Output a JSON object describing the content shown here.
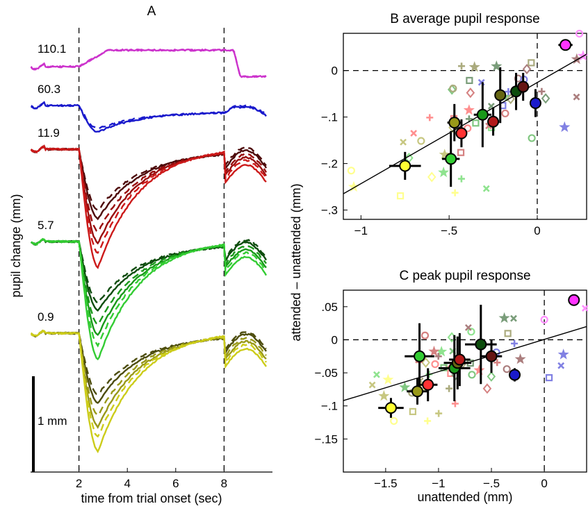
{
  "chart_data": [
    {
      "panel": "A",
      "type": "line",
      "title": "A",
      "xlabel": "time from trial onset (sec)",
      "ylabel": "pupil change (mm)",
      "xlim": [
        0,
        10
      ],
      "xticks": [
        "2",
        "4",
        "6",
        "8"
      ],
      "scale_bar_label": "1 mm",
      "vlines": [
        2,
        8
      ],
      "groups": [
        {
          "label": "110.1",
          "colors": [
            "#cc33cc"
          ],
          "dip": 0.0,
          "late_rise": 0.02,
          "end_drop": 0.45
        },
        {
          "label": "60.3",
          "colors": [
            "#1a1acc"
          ],
          "dip": 0.4,
          "late_rise": 0.15,
          "end_drop": 0.05
        },
        {
          "label": "11.9",
          "colors": [
            "#4d0a0a",
            "#990d0d",
            "#cc1a1a"
          ],
          "dip": 1.05,
          "late_rise": 0.3,
          "end_drop": 0.0
        },
        {
          "label": "5.7",
          "colors": [
            "#0d4d0d",
            "#1a991a",
            "#33cc33"
          ],
          "dip": 1.05,
          "late_rise": 0.3,
          "end_drop": 0.0
        },
        {
          "label": "0.9",
          "colors": [
            "#4d4d0d",
            "#999919",
            "#cccc1a"
          ],
          "dip": 1.05,
          "late_rise": 0.3,
          "end_drop": 0.0
        }
      ]
    },
    {
      "panel": "B",
      "type": "scatter",
      "title": "B average pupil response",
      "xlabel": "",
      "ylabel": "attended – unattended (mm)",
      "xlim": [
        -1.1,
        0.28
      ],
      "ylim": [
        -0.32,
        0.08
      ],
      "xticks": [
        -1,
        -0.5,
        0
      ],
      "yticks": [
        -0.3,
        -0.2,
        -0.1,
        0
      ],
      "fit_line": {
        "x": [
          -1.1,
          0.28
        ],
        "y": [
          -0.265,
          0.035
        ]
      },
      "points": [
        {
          "x": -0.75,
          "y": -0.205,
          "xerr": 0.09,
          "yerr": 0.03,
          "color": "#ffff33"
        },
        {
          "x": -0.49,
          "y": -0.19,
          "xerr": 0.05,
          "yerr": 0.06,
          "color": "#33cc33"
        },
        {
          "x": -0.47,
          "y": -0.112,
          "xerr": 0.04,
          "yerr": 0.04,
          "color": "#999919"
        },
        {
          "x": -0.43,
          "y": -0.135,
          "xerr": 0.03,
          "yerr": 0.03,
          "color": "#ff3333"
        },
        {
          "x": -0.31,
          "y": -0.095,
          "xerr": 0.05,
          "yerr": 0.07,
          "color": "#1a991a"
        },
        {
          "x": -0.25,
          "y": -0.11,
          "xerr": 0.03,
          "yerr": 0.03,
          "color": "#b31a1a"
        },
        {
          "x": -0.21,
          "y": -0.053,
          "xerr": 0.03,
          "yerr": 0.06,
          "color": "#666614"
        },
        {
          "x": -0.12,
          "y": -0.045,
          "xerr": 0.03,
          "yerr": 0.04,
          "color": "#0d4d0d"
        },
        {
          "x": -0.08,
          "y": -0.035,
          "xerr": 0.03,
          "yerr": 0.03,
          "color": "#661414"
        },
        {
          "x": -0.01,
          "y": -0.07,
          "xerr": 0.02,
          "yerr": 0.03,
          "color": "#1a1acc"
        },
        {
          "x": 0.16,
          "y": 0.055,
          "xerr": 0.04,
          "yerr": 0.01,
          "color": "#ff33ff"
        }
      ]
    },
    {
      "panel": "C",
      "type": "scatter",
      "title": "C peak pupil response",
      "xlabel": "unattended (mm)",
      "ylabel": "attended – unattended (mm)",
      "xlim": [
        -1.9,
        0.4
      ],
      "ylim": [
        -0.2,
        0.075
      ],
      "xticks": [
        -1.5,
        -1,
        -0.5,
        0
      ],
      "yticks": [
        -0.15,
        -0.1,
        -0.05,
        0,
        0.05
      ],
      "fit_line": {
        "x": [
          -1.9,
          0.4
        ],
        "y": [
          -0.092,
          0.02
        ]
      },
      "points": [
        {
          "x": -1.45,
          "y": -0.103,
          "xerr": 0.12,
          "yerr": 0.015,
          "color": "#ffff33"
        },
        {
          "x": -1.2,
          "y": -0.078,
          "xerr": 0.1,
          "yerr": 0.02,
          "color": "#999919"
        },
        {
          "x": -1.18,
          "y": -0.025,
          "xerr": 0.14,
          "yerr": 0.05,
          "color": "#33cc33"
        },
        {
          "x": -1.1,
          "y": -0.068,
          "xerr": 0.09,
          "yerr": 0.025,
          "color": "#ff3333"
        },
        {
          "x": -0.85,
          "y": -0.043,
          "xerr": 0.15,
          "yerr": 0.05,
          "color": "#1a991a"
        },
        {
          "x": -0.82,
          "y": -0.035,
          "xerr": 0.13,
          "yerr": 0.04,
          "color": "#666614"
        },
        {
          "x": -0.8,
          "y": -0.03,
          "xerr": 0.1,
          "yerr": 0.04,
          "color": "#b31a1a"
        },
        {
          "x": -0.6,
          "y": -0.007,
          "xerr": 0.15,
          "yerr": 0.06,
          "color": "#0d4d0d"
        },
        {
          "x": -0.5,
          "y": -0.025,
          "xerr": 0.1,
          "yerr": 0.025,
          "color": "#661414"
        },
        {
          "x": -0.28,
          "y": -0.053,
          "xerr": 0.04,
          "yerr": 0.01,
          "color": "#1a1acc"
        },
        {
          "x": 0.28,
          "y": 0.06,
          "xerr": 0.03,
          "yerr": 0.005,
          "color": "#ff33ff"
        }
      ]
    }
  ]
}
